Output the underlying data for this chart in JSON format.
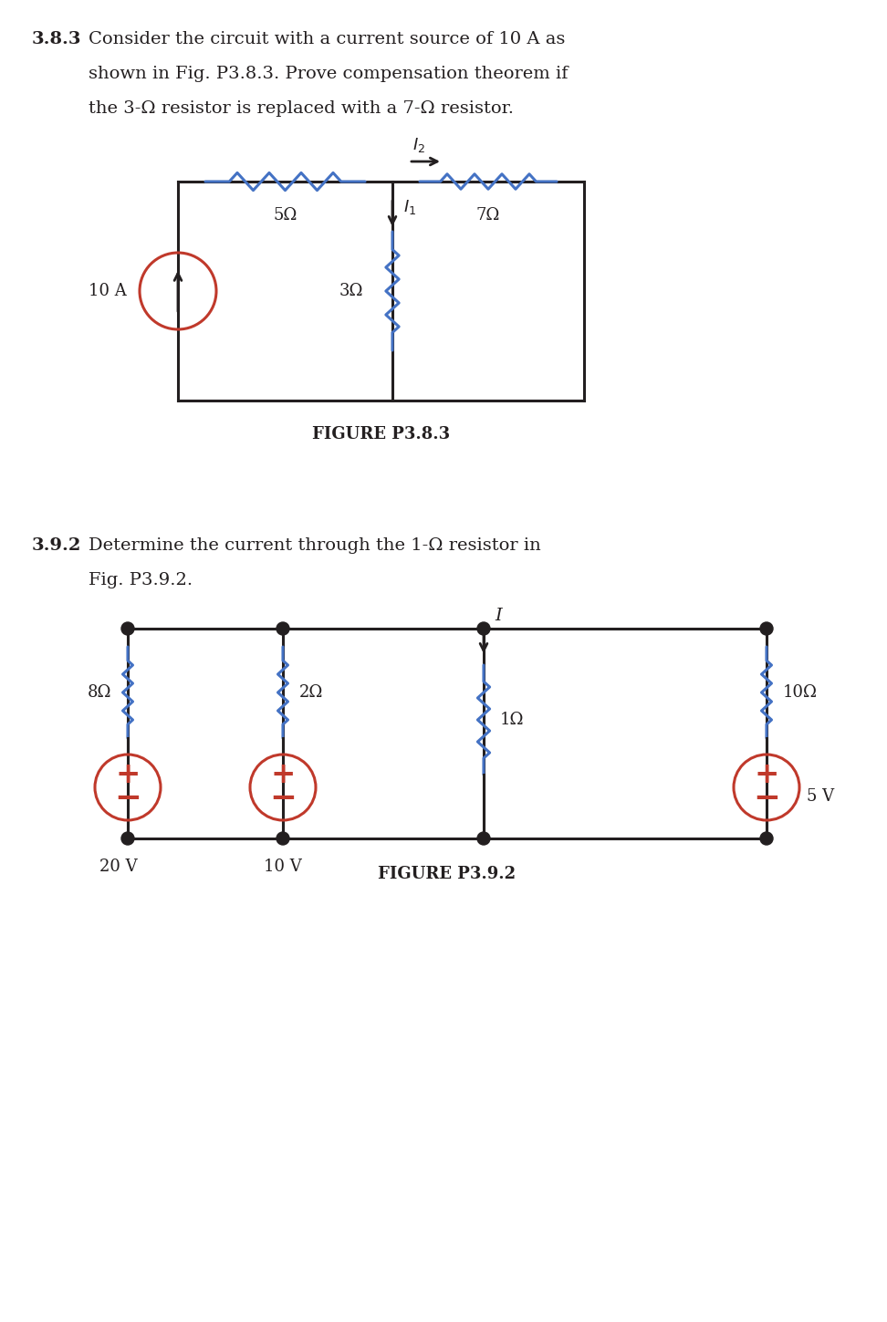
{
  "bg_color": "#ffffff",
  "text_color": "#231f20",
  "blue_color": "#4472c4",
  "red_color": "#c0392b",
  "fig_width": 9.72,
  "fig_height": 14.49,
  "p1_title_bold": "3.8.3",
  "p1_line1": "Consider the circuit with a current source of 10 A as",
  "p1_line2": "shown in Fig. P3.8.3. Prove compensation theorem if",
  "p1_line3": "the 3-Ω resistor is replaced with a 7-Ω resistor.",
  "p1_fig_label": "FIGURE P3.8.3",
  "p1_source": "10 A",
  "p1_r1": "5Ω",
  "p1_r2": "7Ω",
  "p1_r3": "3Ω",
  "p2_title_bold": "3.9.2",
  "p2_line1": "Determine the current through the 1-Ω resistor in",
  "p2_line2": "Fig. P3.9.2.",
  "p2_fig_label": "FIGURE P3.9.2",
  "p2_r1": "8Ω",
  "p2_r2": "2Ω",
  "p2_r3": "1Ω",
  "p2_r4": "10Ω",
  "p2_v1": "20 V",
  "p2_v2": "10 V",
  "p2_v3": "5 V",
  "p2_I": "I"
}
